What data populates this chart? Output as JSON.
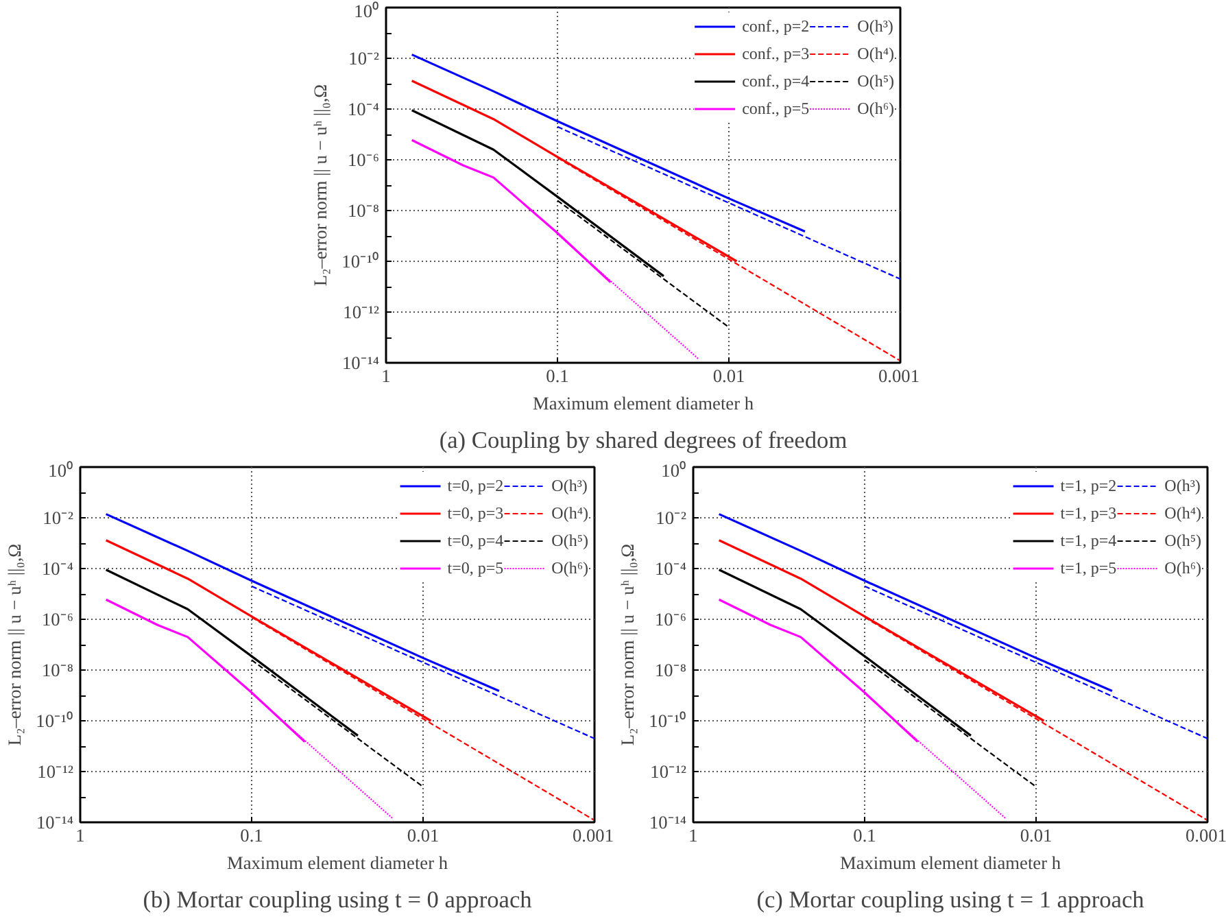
{
  "chart_data": [
    {
      "type": "line",
      "title": "(a) Coupling by shared degrees of freedom",
      "xlabel": "Maximum element diameter h",
      "ylabel": "L₂–error norm || u − uʰ ||₀,Ω",
      "log": "xy",
      "grid": true,
      "legend": "top right",
      "xlim": [
        1,
        0.001
      ],
      "xticks": [
        1,
        0.1,
        0.01,
        0.001
      ],
      "ylim": [
        1e-14,
        1
      ],
      "yticks": [
        {
          "value": 1,
          "label": "10⁰"
        },
        {
          "value": 0.1,
          "label": null
        },
        {
          "value": 0.01,
          "label": "10⁻²"
        },
        {
          "value": 0.001,
          "label": null
        },
        {
          "value": 0.0001,
          "label": "10⁻⁴"
        },
        {
          "value": 1e-05,
          "label": null
        },
        {
          "value": 1e-06,
          "label": "10⁻⁶"
        },
        {
          "value": 1e-07,
          "label": null
        },
        {
          "value": 1e-08,
          "label": "10⁻⁸"
        },
        {
          "value": 1e-09,
          "label": null
        },
        {
          "value": 1e-10,
          "label": "10⁻¹⁰"
        },
        {
          "value": 1e-11,
          "label": null
        },
        {
          "value": 1e-12,
          "label": "10⁻¹²"
        },
        {
          "value": 1e-13,
          "label": null
        },
        {
          "value": 1e-14,
          "label": "10⁻¹⁴"
        }
      ],
      "series": [
        {
          "name": "conf., p=2",
          "color": "#0000ff",
          "line_style": "solid",
          "x": [
            0.707,
            0.236,
            0.1,
            0.01,
            0.0036
          ],
          "values": [
            0.014,
            0.0005,
            3.3e-05,
            3e-08,
            1.5e-09
          ]
        },
        {
          "name": "conf., p=3",
          "color": "#ff0000",
          "line_style": "solid",
          "x": [
            0.707,
            0.236,
            0.1,
            0.009
          ],
          "values": [
            0.0013,
            4e-05,
            1.3e-06,
            1e-10
          ]
        },
        {
          "name": "conf., p=4",
          "color": "#000000",
          "line_style": "solid",
          "x": [
            0.707,
            0.236,
            0.1,
            0.024
          ],
          "values": [
            9e-05,
            2.5e-06,
            3.5e-08,
            2.6e-11
          ]
        },
        {
          "name": "conf., p=5",
          "color": "#ff00ff",
          "line_style": "solid",
          "x": [
            0.707,
            0.354,
            0.236,
            0.1,
            0.049
          ],
          "values": [
            6e-06,
            6e-07,
            2e-07,
            1.3e-09,
            1.5e-11
          ]
        },
        {
          "name": "O(h³)",
          "color": "#0000ff",
          "line_style": "dashed",
          "x": [
            0.1,
            0.001
          ],
          "values": [
            2e-05,
            2e-11
          ]
        },
        {
          "name": "O(h⁴)",
          "color": "#ff0000",
          "line_style": "dashed",
          "x": [
            0.1,
            0.001
          ],
          "values": [
            1.2e-06,
            1.2e-14
          ]
        },
        {
          "name": "O(h⁵)",
          "color": "#000000",
          "line_style": "dashed",
          "x": [
            0.1,
            0.01
          ],
          "values": [
            2.5e-08,
            2.5e-13
          ]
        },
        {
          "name": "O(h⁶)",
          "color": "#ff00ff",
          "line_style": "dotted",
          "x": [
            0.1,
            0.015
          ],
          "values": [
            1.2e-09,
            1.4e-14
          ]
        }
      ]
    },
    {
      "type": "line",
      "title": "(b) Mortar coupling using t = 0 approach",
      "xlabel": "Maximum element diameter h",
      "ylabel": "L₂–error norm || u − uʰ ||₀,Ω",
      "log": "xy",
      "grid": true,
      "legend": "top right",
      "xlim": [
        1,
        0.001
      ],
      "xticks": [
        1,
        0.1,
        0.01,
        0.001
      ],
      "ylim": [
        1e-14,
        1
      ],
      "yticks": [
        {
          "value": 1,
          "label": "10⁰"
        },
        {
          "value": 0.1,
          "label": null
        },
        {
          "value": 0.01,
          "label": "10⁻²"
        },
        {
          "value": 0.001,
          "label": null
        },
        {
          "value": 0.0001,
          "label": "10⁻⁴"
        },
        {
          "value": 1e-05,
          "label": null
        },
        {
          "value": 1e-06,
          "label": "10⁻⁶"
        },
        {
          "value": 1e-07,
          "label": null
        },
        {
          "value": 1e-08,
          "label": "10⁻⁸"
        },
        {
          "value": 1e-09,
          "label": null
        },
        {
          "value": 1e-10,
          "label": "10⁻¹⁰"
        },
        {
          "value": 1e-11,
          "label": null
        },
        {
          "value": 1e-12,
          "label": "10⁻¹²"
        },
        {
          "value": 1e-13,
          "label": null
        },
        {
          "value": 1e-14,
          "label": "10⁻¹⁴"
        }
      ],
      "series": [
        {
          "name": "t=0, p=2",
          "color": "#0000ff",
          "line_style": "solid",
          "x": [
            0.707,
            0.236,
            0.1,
            0.01,
            0.0036
          ],
          "values": [
            0.014,
            0.0005,
            3.3e-05,
            3e-08,
            1.5e-09
          ]
        },
        {
          "name": "t=0, p=3",
          "color": "#ff0000",
          "line_style": "solid",
          "x": [
            0.707,
            0.236,
            0.1,
            0.009
          ],
          "values": [
            0.0013,
            4e-05,
            1.3e-06,
            1e-10
          ]
        },
        {
          "name": "t=0, p=4",
          "color": "#000000",
          "line_style": "solid",
          "x": [
            0.707,
            0.236,
            0.1,
            0.024
          ],
          "values": [
            9e-05,
            2.5e-06,
            3.5e-08,
            2.6e-11
          ]
        },
        {
          "name": "t=0, p=5",
          "color": "#ff00ff",
          "line_style": "solid",
          "x": [
            0.707,
            0.354,
            0.236,
            0.1,
            0.049
          ],
          "values": [
            6e-06,
            6e-07,
            2e-07,
            1.3e-09,
            1.5e-11
          ]
        },
        {
          "name": "O(h³)",
          "color": "#0000ff",
          "line_style": "dashed",
          "x": [
            0.1,
            0.001
          ],
          "values": [
            2e-05,
            2e-11
          ]
        },
        {
          "name": "O(h⁴)",
          "color": "#ff0000",
          "line_style": "dashed",
          "x": [
            0.1,
            0.001
          ],
          "values": [
            1.2e-06,
            1.2e-14
          ]
        },
        {
          "name": "O(h⁵)",
          "color": "#000000",
          "line_style": "dashed",
          "x": [
            0.1,
            0.01
          ],
          "values": [
            2.5e-08,
            2.5e-13
          ]
        },
        {
          "name": "O(h⁶)",
          "color": "#ff00ff",
          "line_style": "dotted",
          "x": [
            0.1,
            0.015
          ],
          "values": [
            1.2e-09,
            1.4e-14
          ]
        }
      ]
    },
    {
      "type": "line",
      "title": "(c) Mortar coupling using t = 1 approach",
      "xlabel": "Maximum element diameter h",
      "ylabel": "L₂–error norm || u − uʰ ||₀,Ω",
      "log": "xy",
      "grid": true,
      "legend": "top right",
      "xlim": [
        1,
        0.001
      ],
      "xticks": [
        1,
        0.1,
        0.01,
        0.001
      ],
      "ylim": [
        1e-14,
        1
      ],
      "yticks": [
        {
          "value": 1,
          "label": "10⁰"
        },
        {
          "value": 0.1,
          "label": null
        },
        {
          "value": 0.01,
          "label": "10⁻²"
        },
        {
          "value": 0.001,
          "label": null
        },
        {
          "value": 0.0001,
          "label": "10⁻⁴"
        },
        {
          "value": 1e-05,
          "label": null
        },
        {
          "value": 1e-06,
          "label": "10⁻⁶"
        },
        {
          "value": 1e-07,
          "label": null
        },
        {
          "value": 1e-08,
          "label": "10⁻⁸"
        },
        {
          "value": 1e-09,
          "label": null
        },
        {
          "value": 1e-10,
          "label": "10⁻¹⁰"
        },
        {
          "value": 1e-11,
          "label": null
        },
        {
          "value": 1e-12,
          "label": "10⁻¹²"
        },
        {
          "value": 1e-13,
          "label": null
        },
        {
          "value": 1e-14,
          "label": "10⁻¹⁴"
        }
      ],
      "series": [
        {
          "name": "t=1, p=2",
          "color": "#0000ff",
          "line_style": "solid",
          "x": [
            0.707,
            0.236,
            0.1,
            0.01,
            0.0036
          ],
          "values": [
            0.014,
            0.0005,
            3.3e-05,
            3e-08,
            1.5e-09
          ]
        },
        {
          "name": "t=1, p=3",
          "color": "#ff0000",
          "line_style": "solid",
          "x": [
            0.707,
            0.236,
            0.1,
            0.009
          ],
          "values": [
            0.0013,
            4e-05,
            1.3e-06,
            1e-10
          ]
        },
        {
          "name": "t=1, p=4",
          "color": "#000000",
          "line_style": "solid",
          "x": [
            0.707,
            0.236,
            0.1,
            0.024
          ],
          "values": [
            9e-05,
            2.5e-06,
            3.5e-08,
            2.6e-11
          ]
        },
        {
          "name": "t=1, p=5",
          "color": "#ff00ff",
          "line_style": "solid",
          "x": [
            0.707,
            0.354,
            0.236,
            0.1,
            0.049
          ],
          "values": [
            6e-06,
            6e-07,
            2e-07,
            1.3e-09,
            1.5e-11
          ]
        },
        {
          "name": "O(h³)",
          "color": "#0000ff",
          "line_style": "dashed",
          "x": [
            0.1,
            0.001
          ],
          "values": [
            2e-05,
            2e-11
          ]
        },
        {
          "name": "O(h⁴)",
          "color": "#ff0000",
          "line_style": "dashed",
          "x": [
            0.1,
            0.001
          ],
          "values": [
            1.2e-06,
            1.2e-14
          ]
        },
        {
          "name": "O(h⁵)",
          "color": "#000000",
          "line_style": "dashed",
          "x": [
            0.1,
            0.01
          ],
          "values": [
            2.5e-08,
            2.5e-13
          ]
        },
        {
          "name": "O(h⁶)",
          "color": "#ff00ff",
          "line_style": "dotted",
          "x": [
            0.1,
            0.015
          ],
          "values": [
            1.2e-09,
            1.4e-14
          ]
        }
      ]
    }
  ]
}
